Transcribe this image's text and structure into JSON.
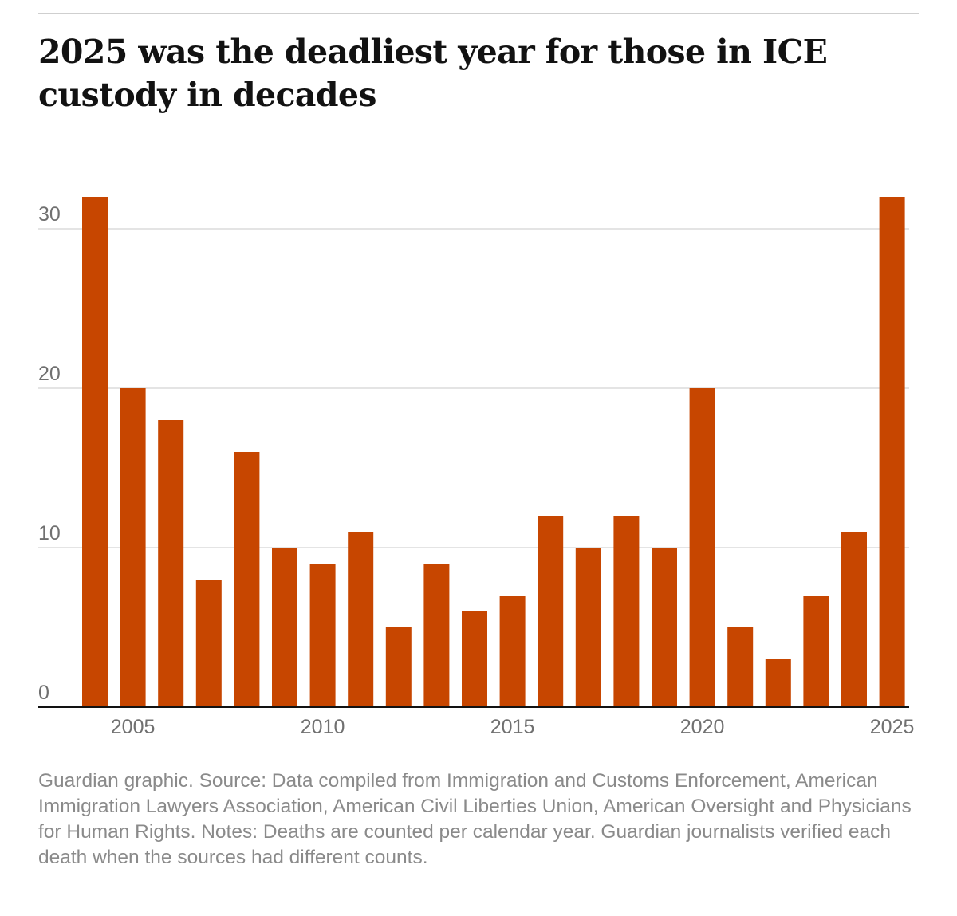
{
  "header": {
    "title": "2025 was the deadliest year for those in ICE custody in decades"
  },
  "chart_data": {
    "type": "bar",
    "title": "2025 was the deadliest year for those in ICE custody in decades",
    "xlabel": "",
    "ylabel": "",
    "categories": [
      2004,
      2005,
      2006,
      2007,
      2008,
      2009,
      2010,
      2011,
      2012,
      2013,
      2014,
      2015,
      2016,
      2017,
      2018,
      2019,
      2020,
      2021,
      2022,
      2023,
      2024,
      2025
    ],
    "values": [
      32,
      20,
      18,
      8,
      16,
      10,
      9,
      11,
      5,
      9,
      6,
      7,
      12,
      10,
      12,
      10,
      20,
      5,
      3,
      7,
      11,
      32
    ],
    "ylim": [
      0,
      32
    ],
    "yticks": [
      0,
      10,
      20,
      30
    ],
    "xticks": [
      2005,
      2010,
      2015,
      2020,
      2025
    ],
    "grid": true,
    "legend": "none",
    "bar_color": "#c74600"
  },
  "footer": {
    "source": "Guardian graphic. Source: Data compiled from Immigration and Customs Enforcement, American Immigration Lawyers Association, American Civil Liberties Union, American Oversight and Physicians for Human Rights. Notes: Deaths are counted per calendar year. Guardian journalists verified each death when the sources had different counts."
  }
}
